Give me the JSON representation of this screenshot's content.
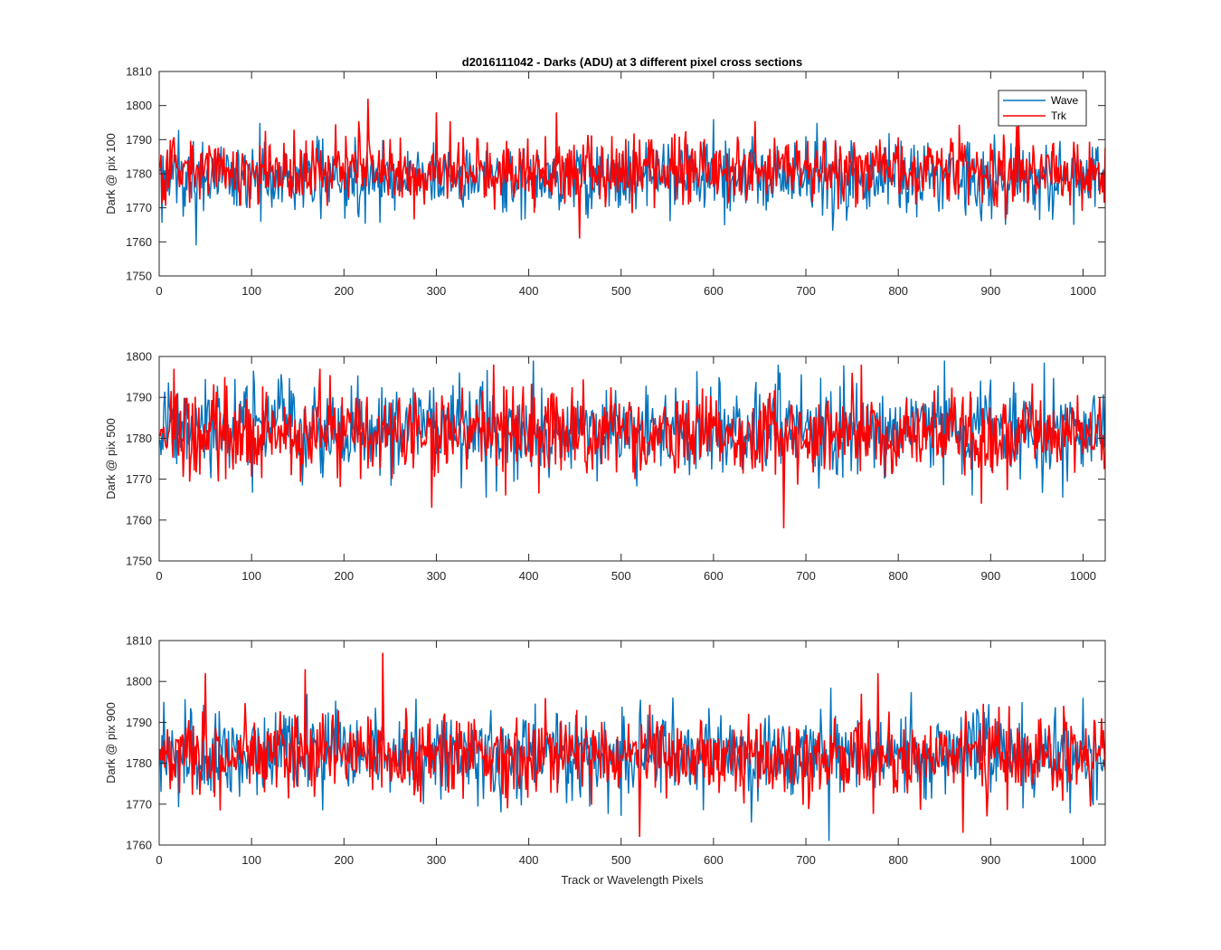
{
  "figure": {
    "title": "d2016111042 - Darks (ADU) at 3 different pixel cross sections",
    "xlabel": "Track or Wavelength Pixels"
  },
  "colors": {
    "wave": "#0072BD",
    "trk": "#FF0000",
    "axis": "#262626"
  },
  "chart_data": [
    {
      "type": "line",
      "ylabel": "Dark @ pix 100",
      "xlim": [
        0,
        1024
      ],
      "ylim": [
        1750,
        1810
      ],
      "xticks": [
        0,
        100,
        200,
        300,
        400,
        500,
        600,
        700,
        800,
        900,
        1000
      ],
      "yticks": [
        1750,
        1760,
        1770,
        1780,
        1790,
        1800,
        1810
      ],
      "grid": false,
      "legend": {
        "show": true,
        "position": "top-right"
      },
      "series": [
        {
          "name": "Wave",
          "color": "#0072BD",
          "x_range": [
            1,
            1024
          ],
          "mean": 1779,
          "std": 5.3,
          "features": [
            [
              40,
              1759
            ],
            [
              600,
              1796
            ],
            [
              700,
              1791
            ],
            [
              916,
              1765
            ],
            [
              990,
              1765
            ]
          ]
        },
        {
          "name": "Trk",
          "color": "#FF0000",
          "x_range": [
            1,
            1024
          ],
          "mean": 1781,
          "std": 4.8,
          "features": [
            [
              226,
              1802
            ],
            [
              300,
              1798
            ],
            [
              430,
              1798
            ],
            [
              455,
              1761
            ],
            [
              930,
              1798
            ]
          ]
        }
      ]
    },
    {
      "type": "line",
      "ylabel": "Dark @ pix 500",
      "xlim": [
        0,
        1024
      ],
      "ylim": [
        1750,
        1800
      ],
      "xticks": [
        0,
        100,
        200,
        300,
        400,
        500,
        600,
        700,
        800,
        900,
        1000
      ],
      "yticks": [
        1750,
        1760,
        1770,
        1780,
        1790,
        1800
      ],
      "grid": false,
      "legend": {
        "show": false
      },
      "series": [
        {
          "name": "Wave",
          "color": "#0072BD",
          "x_range": [
            1,
            1024
          ],
          "mean": 1782,
          "std": 5.5,
          "features": [
            [
              405,
              1799
            ],
            [
              670,
              1798
            ],
            [
              850,
              1799
            ],
            [
              880,
              1766
            ]
          ]
        },
        {
          "name": "Trk",
          "color": "#FF0000",
          "x_range": [
            1,
            1024
          ],
          "mean": 1781,
          "std": 5.0,
          "features": [
            [
              16,
              1797
            ],
            [
              174,
              1797
            ],
            [
              295,
              1763
            ],
            [
              362,
              1798
            ],
            [
              676,
              1758
            ],
            [
              760,
              1798
            ],
            [
              890,
              1764
            ]
          ]
        }
      ]
    },
    {
      "type": "line",
      "ylabel": "Dark @ pix 900",
      "xlim": [
        0,
        1024
      ],
      "ylim": [
        1760,
        1810
      ],
      "xticks": [
        0,
        100,
        200,
        300,
        400,
        500,
        600,
        700,
        800,
        900,
        1000
      ],
      "yticks": [
        1760,
        1770,
        1780,
        1790,
        1800,
        1810
      ],
      "grid": false,
      "legend": {
        "show": false
      },
      "series": [
        {
          "name": "Wave",
          "color": "#0072BD",
          "x_range": [
            1,
            1024
          ],
          "mean": 1782,
          "std": 5.5,
          "features": [
            [
              5,
              1795
            ],
            [
              160,
              1797
            ],
            [
              725,
              1760
            ],
            [
              1000,
              1796
            ]
          ]
        },
        {
          "name": "Trk",
          "color": "#FF0000",
          "x_range": [
            1,
            1024
          ],
          "mean": 1782,
          "std": 5.0,
          "features": [
            [
              50,
              1802
            ],
            [
              158,
              1803
            ],
            [
              242,
              1807
            ],
            [
              520,
              1762
            ],
            [
              778,
              1802
            ],
            [
              870,
              1763
            ],
            [
              1020,
              1791
            ]
          ]
        }
      ]
    }
  ]
}
